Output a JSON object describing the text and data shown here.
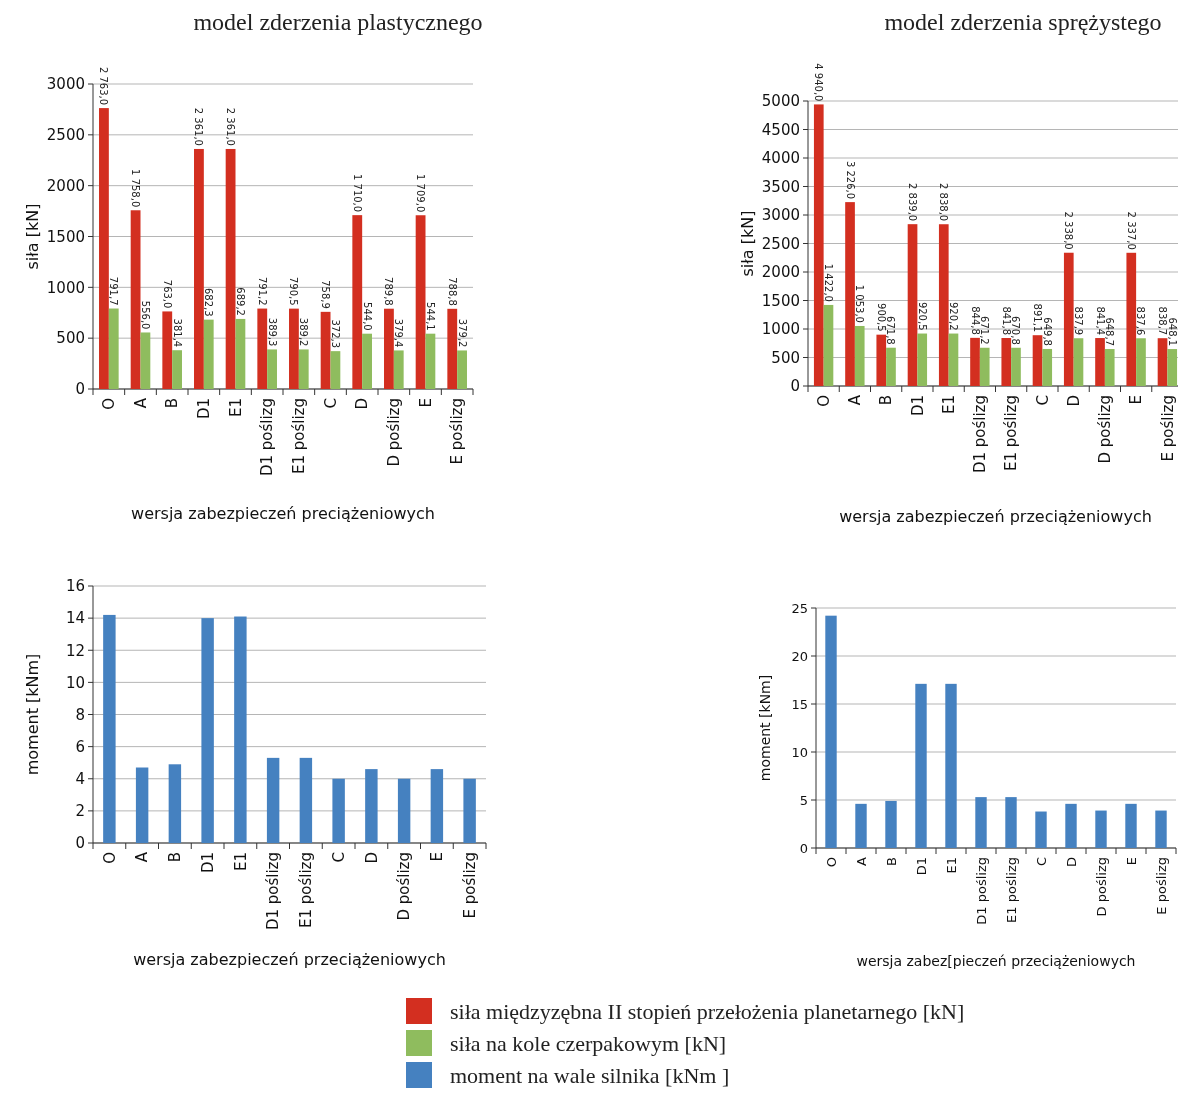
{
  "chart_data": [
    {
      "type": "bar",
      "title": "model zderzenia plastycznego",
      "xlabel": "wersja zabezpieczeń preciążeniowych",
      "ylabel": "siła  [kN]",
      "categories": [
        "O",
        "A",
        "B",
        "D1",
        "E1",
        "D1 poślizg",
        "E1 poślizg",
        "C",
        "D",
        "D poślizg",
        "E",
        "E poślizg"
      ],
      "ylim": [
        0,
        3000
      ],
      "yticks": [
        0,
        500,
        1000,
        1500,
        2000,
        2500,
        3000
      ],
      "grid": "y",
      "legend": "bottom",
      "series": [
        {
          "name": "siła międzyzębna II stopień przełożenia planetarnego  [kN]",
          "color": "#d32f20",
          "values": [
            2763,
            1758,
            763,
            2361,
            2361,
            791.2,
            790.5,
            758.9,
            1710,
            789.8,
            1709,
            788.8
          ],
          "value_labels": [
            "2 763,0",
            "1 758,0",
            "763,0",
            "2 361,0",
            "2 361,0",
            "791,2",
            "790,5",
            "758,9",
            "1 710,0",
            "789,8",
            "1 709,0",
            "788,8"
          ]
        },
        {
          "name": "siła na kole czerpakowym  [kN]",
          "color": "#8fbc5e",
          "values": [
            791.7,
            556,
            381.4,
            682.3,
            689.2,
            389.3,
            389.2,
            372.3,
            544,
            379.4,
            544.1,
            379.2
          ],
          "value_labels": [
            "791,7",
            "556,0",
            "381,4",
            "682,3",
            "689,2",
            "389,3",
            "389,2",
            "372,3",
            "544,0",
            "379,4",
            "544,1",
            "379,2"
          ]
        }
      ]
    },
    {
      "type": "bar",
      "title": "model zderzenia sprężystego",
      "xlabel": "wersja zabezpieczeń przeciążeniowych",
      "ylabel": "siła  [kN]",
      "categories": [
        "O",
        "A",
        "B",
        "D1",
        "E1",
        "D1 poślizg",
        "E1 poślizg",
        "C",
        "D",
        "D poślizg",
        "E",
        "E poślizg"
      ],
      "ylim": [
        0,
        5000
      ],
      "yticks": [
        0,
        500,
        1000,
        1500,
        2000,
        2500,
        3000,
        3500,
        4000,
        4500,
        5000
      ],
      "grid": "y",
      "series": [
        {
          "color": "#d32f20",
          "values": [
            4940,
            3226,
            900.5,
            2839,
            2838,
            844.8,
            841.8,
            891.1,
            2338,
            841.4,
            2337,
            838.7
          ],
          "value_labels": [
            "4 940,0",
            "3 226,0",
            "900,5",
            "2 839,0",
            "2 838,0",
            "844,8",
            "841,8",
            "891,1",
            "2 338,0",
            "841,4",
            "2 337,0",
            "838,7"
          ]
        },
        {
          "color": "#8fbc5e",
          "values": [
            1422,
            1053,
            671.8,
            920.5,
            920.2,
            671.2,
            670.8,
            649.8,
            837.9,
            648.7,
            837.6,
            648.1
          ],
          "value_labels": [
            "1 422,0",
            "1 053,0",
            "671,8",
            "920,5",
            "920,2",
            "671,2",
            "670,8",
            "649,8",
            "837,9",
            "648,7",
            "837,6",
            "648,1"
          ]
        }
      ]
    },
    {
      "type": "bar",
      "xlabel": "wersja zabezpieczeń przeciążeniowych",
      "ylabel": "moment  [kNm]",
      "categories": [
        "O",
        "A",
        "B",
        "D1",
        "E1",
        "D1 poślizg",
        "E1 poślizg",
        "C",
        "D",
        "D poślizg",
        "E",
        "E poślizg"
      ],
      "ylim": [
        0,
        16
      ],
      "yticks": [
        0,
        2,
        4,
        6,
        8,
        10,
        12,
        14,
        16
      ],
      "grid": "y",
      "legend": "bottom",
      "series": [
        {
          "name": "moment na wale silnika  [kNm ]",
          "color": "#4581c0",
          "values": [
            14.2,
            4.7,
            4.9,
            14.0,
            14.1,
            5.3,
            5.3,
            4.0,
            4.6,
            4.0,
            4.6,
            4.0
          ]
        }
      ]
    },
    {
      "type": "bar",
      "xlabel": "wersja zabez[pieczeń przeciążeniowych",
      "ylabel": "moment  [kNm]",
      "categories": [
        "O",
        "A",
        "B",
        "D1",
        "E1",
        "D1 poślizg",
        "E1 poślizg",
        "C",
        "D",
        "D poślizg",
        "E",
        "E poślizg"
      ],
      "ylim": [
        0,
        25
      ],
      "yticks": [
        0,
        5,
        10,
        15,
        20,
        25
      ],
      "grid": "y",
      "series": [
        {
          "color": "#4581c0",
          "values": [
            24.2,
            4.6,
            4.9,
            17.1,
            17.1,
            5.3,
            5.3,
            3.8,
            4.6,
            3.9,
            4.6,
            3.9
          ]
        }
      ]
    }
  ]
}
